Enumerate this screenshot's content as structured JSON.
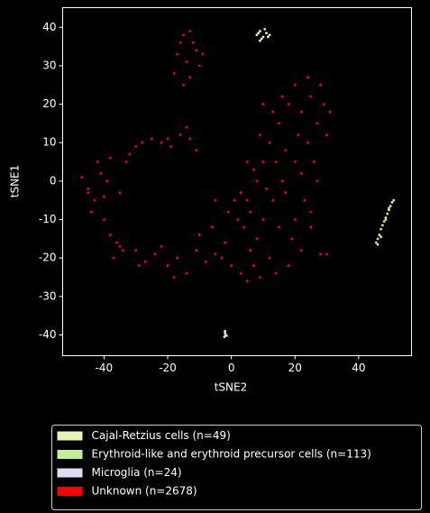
{
  "chart_data": {
    "type": "scatter",
    "xlabel": "tSNE2",
    "ylabel": "tSNE1",
    "xlim": [
      -53,
      56.6
    ],
    "ylim": [
      -45.4,
      45.1
    ],
    "xticks": [
      -40,
      -20,
      0,
      20,
      40
    ],
    "yticks": [
      -40,
      -30,
      -20,
      -10,
      0,
      10,
      20,
      30,
      40
    ],
    "legend": "below",
    "series": [
      {
        "name": "Cajal-Retzius cells (n=49)",
        "color": "#e3f5b5",
        "x": [
          8,
          9,
          10,
          11,
          9.5,
          10.5,
          12,
          8.5,
          9,
          11.5
        ],
        "y": [
          38,
          39,
          37.5,
          38.5,
          37,
          39.5,
          38,
          38.5,
          36.5,
          37.5
        ]
      },
      {
        "name": "Erythroid-like and erythroid precursor cells (n=113)",
        "color": "#c2f09a",
        "x": [
          45.5,
          46,
          46.5,
          47,
          47.5,
          48,
          48.5,
          49,
          49.5,
          50,
          50.5,
          51,
          46,
          47,
          48.5,
          49.5
        ],
        "y": [
          -16,
          -15,
          -14,
          -12.5,
          -11.5,
          -10.5,
          -9.5,
          -8.5,
          -7.5,
          -6.5,
          -5.5,
          -5,
          -16.5,
          -14.5,
          -10,
          -7
        ]
      },
      {
        "name": "Microglia (n=24)",
        "color": "#dcdcf5",
        "x": [
          -2,
          -1.8,
          -2.2,
          -1.5,
          -2
        ],
        "y": [
          -39.5,
          -40,
          -40.5,
          -40.2,
          -39
        ]
      },
      {
        "name": "Unknown (n=2678)",
        "color": "#ff0000",
        "x": [
          -15,
          -12,
          -17,
          -14,
          -10,
          -18,
          -13,
          -11,
          -16,
          -13,
          -9,
          -15,
          -47,
          -45,
          -43,
          -41,
          -39,
          -44,
          -40,
          -38,
          -36,
          -34,
          -37,
          -42,
          -38,
          -35,
          -45,
          -40,
          -32,
          -30,
          -28,
          -25,
          -22,
          -19,
          -16,
          -13,
          -11,
          -14,
          -20,
          -33,
          -35,
          -30,
          -27,
          -24,
          -20,
          -17,
          -14,
          -11,
          -8,
          -5,
          -2,
          0,
          3,
          5,
          -22,
          -18,
          -10,
          -29,
          -6,
          -3,
          2,
          5,
          8,
          10,
          12,
          15,
          18,
          20,
          22,
          25,
          27,
          29,
          24,
          20,
          16,
          13,
          10,
          8,
          12,
          18,
          22,
          25,
          28,
          20,
          15,
          6,
          3,
          7,
          11,
          17,
          22,
          26,
          23,
          19,
          14,
          9,
          4,
          1,
          28,
          24,
          30,
          31,
          27,
          25,
          16,
          14,
          9,
          6,
          21,
          17,
          30,
          5,
          7,
          13,
          10,
          -5,
          -1
        ],
        "y": [
          38,
          36,
          33,
          31,
          30,
          28,
          27,
          34,
          36,
          39,
          33,
          25,
          1,
          -2,
          -5,
          2,
          0,
          -8,
          -10,
          -14,
          -16,
          -18,
          -20,
          5,
          6,
          -3,
          -3,
          -4,
          7,
          9,
          10,
          11,
          10,
          9,
          12,
          11,
          8,
          14,
          11,
          5,
          -17,
          -18,
          -21,
          -19,
          -22,
          -20,
          -24,
          -18,
          -21,
          -19,
          -16,
          -22,
          -24,
          -26,
          -17,
          -25,
          -14,
          -22,
          -12,
          -20,
          -10,
          -5,
          0,
          5,
          10,
          15,
          20,
          25,
          18,
          22,
          15,
          20,
          10,
          5,
          0,
          -5,
          -10,
          -15,
          -20,
          -22,
          -18,
          -12,
          -19,
          -10,
          -12,
          -18,
          -3,
          3,
          -2,
          8,
          2,
          5,
          -5,
          -15,
          -24,
          -25,
          -12,
          -5,
          25,
          27,
          12,
          18,
          0,
          -8,
          22,
          5,
          12,
          -8,
          12,
          -3,
          -19,
          5,
          -22,
          18,
          20,
          -5,
          -8
        ]
      }
    ]
  }
}
